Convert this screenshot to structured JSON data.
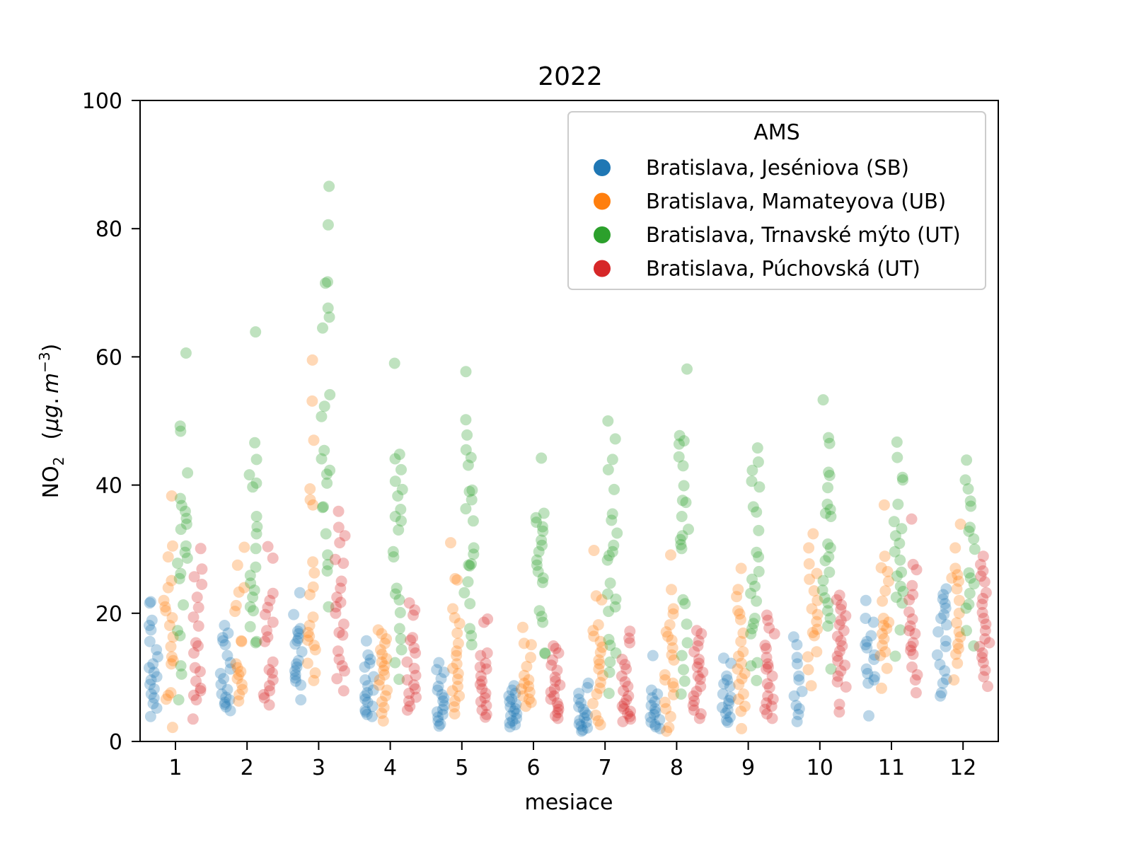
{
  "chart_data": {
    "type": "scatter",
    "title": "2022",
    "xlabel": "mesiace",
    "ylabel_main": "NO",
    "ylabel_sub": "2",
    "ylabel_unit_open": "(",
    "ylabel_unit_mu": "μ",
    "ylabel_unit_g": "g",
    "ylabel_unit_dot": ".",
    "ylabel_unit_m": "m",
    "ylabel_unit_exp": "−3",
    "ylabel_unit_close": ")",
    "ylim": [
      0,
      100
    ],
    "yticks": [
      "0",
      "20",
      "40",
      "60",
      "80",
      "100"
    ],
    "categories": [
      "1",
      "2",
      "3",
      "4",
      "5",
      "6",
      "7",
      "8",
      "9",
      "10",
      "11",
      "12"
    ],
    "legend_title": "AMS",
    "legend_position": "top-right",
    "grid": false,
    "series": [
      {
        "name": "Bratislava, Jeséniova (SB)",
        "color": "#1f77b4",
        "values": [
          [
            21.8,
            21.6,
            18.9,
            18.1,
            17.4,
            15.6,
            14.3,
            13.2,
            12.1,
            11.5,
            10.8,
            10.1,
            9.6,
            8.9,
            8.2,
            7.4,
            6.8,
            5.9,
            5.2,
            3.9
          ],
          [
            18.1,
            16.9,
            16.2,
            15.7,
            15.1,
            13.4,
            12.3,
            11.3,
            10.6,
            9.8,
            8.9,
            8.1,
            7.4,
            6.9,
            6.5,
            6.1,
            5.8,
            5.4,
            4.8
          ],
          [
            23.2,
            19.8,
            17.6,
            17.2,
            16.8,
            16.1,
            15.7,
            15.2,
            14.0,
            12.6,
            12.1,
            11.6,
            11.0,
            10.4,
            9.9,
            9.4,
            8.8,
            6.5
          ],
          [
            15.7,
            13.5,
            12.8,
            12.2,
            11.6,
            10.1,
            9.6,
            8.7,
            8.0,
            7.6,
            7.1,
            6.6,
            6.1,
            5.5,
            4.9,
            4.6,
            4.2,
            3.9
          ],
          [
            12.3,
            11.2,
            10.8,
            9.8,
            8.6,
            8.0,
            7.3,
            6.8,
            6.3,
            5.6,
            5.0,
            4.6,
            4.2,
            3.8,
            3.2,
            2.7,
            2.4
          ],
          [
            8.7,
            8.0,
            7.5,
            7.1,
            6.6,
            6.2,
            5.8,
            5.4,
            5.1,
            4.7,
            4.3,
            4.0,
            3.6,
            3.2,
            2.9,
            2.6,
            2.3
          ],
          [
            9.1,
            8.4,
            7.5,
            6.6,
            6.0,
            5.4,
            5.0,
            4.5,
            4.1,
            3.7,
            3.3,
            3.0,
            2.7,
            2.4,
            2.1,
            1.8,
            1.6
          ],
          [
            13.4,
            8.0,
            7.4,
            6.8,
            6.2,
            5.6,
            5.1,
            4.6,
            4.2,
            3.8,
            3.4,
            3.0,
            2.6,
            2.3,
            2.0
          ],
          [
            13.0,
            12.2,
            10.2,
            9.6,
            9.0,
            8.6,
            7.4,
            6.9,
            6.4,
            5.9,
            5.3,
            4.9,
            4.4,
            3.8,
            3.3,
            3.0
          ],
          [
            16.3,
            15.1,
            13.1,
            12.1,
            10.2,
            9.6,
            7.8,
            7.1,
            5.6,
            5.1,
            4.2,
            3.1
          ],
          [
            22.0,
            19.2,
            18.6,
            16.5,
            15.6,
            15.1,
            14.6,
            13.5,
            12.8,
            11.3,
            10.6,
            10.1,
            9.6,
            9.1,
            4.0
          ],
          [
            23.8,
            22.9,
            22.2,
            21.5,
            20.8,
            19.8,
            19.2,
            18.2,
            17.1,
            15.7,
            14.8,
            13.5,
            12.0,
            11.0,
            9.7,
            9.1,
            7.6,
            7.1
          ]
        ]
      },
      {
        "name": "Bratislava, Mamateyova (UB)",
        "color": "#ff7f0e",
        "values": [
          [
            38.3,
            30.5,
            28.8,
            25.1,
            24.0,
            22.0,
            21.0,
            20.4,
            19.3,
            18.1,
            16.3,
            14.8,
            13.2,
            12.6,
            12.1,
            7.6,
            7.2,
            6.6,
            2.2
          ],
          [
            30.3,
            27.5,
            24.0,
            23.3,
            21.2,
            20.3,
            15.7,
            15.6,
            12.1,
            11.5,
            10.9,
            10.4,
            9.8,
            8.9,
            8.1,
            7.3,
            6.3
          ],
          [
            59.5,
            53.1,
            47.0,
            39.4,
            37.7,
            36.9,
            28.0,
            26.3,
            24.1,
            22.9,
            19.4,
            18.1,
            17.0,
            16.4,
            15.8,
            15.0,
            14.3,
            12.2,
            10.7,
            9.5
          ],
          [
            17.4,
            16.8,
            16.0,
            15.3,
            14.3,
            13.6,
            12.9,
            12.4,
            11.8,
            11.1,
            10.4,
            9.6,
            8.8,
            8.0,
            7.1,
            6.2,
            5.3,
            4.4,
            3.2
          ],
          [
            31.0,
            25.4,
            25.2,
            20.7,
            19.3,
            18.4,
            16.9,
            15.3,
            14.1,
            13.4,
            12.1,
            11.4,
            10.6,
            9.7,
            8.6,
            7.9,
            7.1,
            6.3,
            5.4,
            4.3
          ],
          [
            17.8,
            15.3,
            15.1,
            13.1,
            11.7,
            10.3,
            9.6,
            9.1,
            8.6,
            8.2,
            7.7,
            7.1,
            6.6,
            6.1,
            5.5
          ],
          [
            29.8,
            22.7,
            22.1,
            18.2,
            17.3,
            16.4,
            15.6,
            14.7,
            13.9,
            12.7,
            12.1,
            11.3,
            10.3,
            9.2,
            8.3,
            7.4,
            5.9,
            4.1,
            3.2,
            2.6
          ],
          [
            29.1,
            23.7,
            20.7,
            19.9,
            18.2,
            17.1,
            16.4,
            15.8,
            14.6,
            13.5,
            12.7,
            10.4,
            9.6,
            9.1,
            8.5,
            7.3,
            6.1,
            5.1,
            3.9,
            2.2,
            1.6
          ],
          [
            27.0,
            23.7,
            22.6,
            20.4,
            19.9,
            19.0,
            16.9,
            15.6,
            14.0,
            13.3,
            12.2,
            11.3,
            10.6,
            9.8,
            8.9,
            7.4,
            6.6,
            5.5,
            4.7,
            2.0
          ],
          [
            32.4,
            30.2,
            27.7,
            26.2,
            25.3,
            23.5,
            22.0,
            20.7,
            19.8,
            18.7,
            17.5,
            17.0,
            16.5,
            14.0,
            13.2,
            11.2,
            8.7
          ],
          [
            36.9,
            28.9,
            27.1,
            26.5,
            25.0,
            23.5,
            21.9,
            19.2,
            18.6,
            18.1,
            17.6,
            16.8,
            16.0,
            15.0,
            14.0,
            13.4,
            11.4,
            8.3
          ],
          [
            33.9,
            30.2,
            27.0,
            26.0,
            25.5,
            25.0,
            23.8,
            22.0,
            20.0,
            18.5,
            17.1,
            16.3,
            15.2,
            14.5,
            13.6,
            12.2,
            9.6
          ]
        ]
      },
      {
        "name": "Bratislava, Trnavské mýto (UT)",
        "color": "#2ca02c",
        "values": [
          [
            60.6,
            49.2,
            48.4,
            41.9,
            37.9,
            36.8,
            35.9,
            34.8,
            33.9,
            33.1,
            30.5,
            29.5,
            28.6,
            27.8,
            26.2,
            25.4,
            21.3,
            17.3,
            16.5,
            11.8,
            10.5,
            6.5
          ],
          [
            63.9,
            46.6,
            44.0,
            41.6,
            40.3,
            39.7,
            35.1,
            33.5,
            32.4,
            30.1,
            27.2,
            25.9,
            24.7,
            23.6,
            22.5,
            21.0,
            20.4,
            17.9,
            15.6,
            15.4
          ],
          [
            86.6,
            80.6,
            71.7,
            71.5,
            67.6,
            66.2,
            64.5,
            54.1,
            52.3,
            50.7,
            45.4,
            44.1,
            42.3,
            41.7,
            40.3,
            36.6,
            36.5,
            32.4,
            29.1,
            27.6,
            26.6,
            21.0
          ],
          [
            59.0,
            44.8,
            44.1,
            42.4,
            40.6,
            39.3,
            38.3,
            36.2,
            35.1,
            34.4,
            33.0,
            29.6,
            28.8,
            23.9,
            23.0,
            22.1,
            20.1,
            17.6,
            16.0,
            14.3,
            12.3,
            9.7
          ],
          [
            57.7,
            50.2,
            47.8,
            45.5,
            44.3,
            43.1,
            39.2,
            39.0,
            37.7,
            36.3,
            34.4,
            30.2,
            29.2,
            27.5,
            27.7,
            27.4,
            24.9,
            23.2,
            21.5,
            17.6,
            16.5,
            15.1
          ],
          [
            44.2,
            35.6,
            34.9,
            34.2,
            33.5,
            32.8,
            31.4,
            30.6,
            29.6,
            28.3,
            27.5,
            26.5,
            25.5,
            24.8,
            20.4,
            19.5,
            18.6,
            13.8,
            13.7
          ],
          [
            50.0,
            47.2,
            44.0,
            42.4,
            39.3,
            35.5,
            34.5,
            32.5,
            30.6,
            29.6,
            29.0,
            28.3,
            24.7,
            23.0,
            22.2,
            21.0,
            20.3,
            15.9,
            15.0,
            13.8,
            12.4,
            10.8,
            7.5
          ],
          [
            58.1,
            47.7,
            46.9,
            46.4,
            44.4,
            43.0,
            39.9,
            37.6,
            37.3,
            35.1,
            33.1,
            32.1,
            31.5,
            30.7,
            30.1,
            22.1,
            21.5,
            18.3,
            15.4,
            13.4,
            11.2,
            9.4,
            7.4
          ],
          [
            45.8,
            43.6,
            42.3,
            40.6,
            39.7,
            36.6,
            35.8,
            32.9,
            29.5,
            28.8,
            26.5,
            25.3,
            24.2,
            23.1,
            21.9,
            19.2,
            18.4,
            17.6,
            16.8,
            12.3,
            11.8,
            9.5
          ],
          [
            53.3,
            47.4,
            46.5,
            42.0,
            41.5,
            39.6,
            37.0,
            36.2,
            35.6,
            35.1,
            30.8,
            30.2,
            28.8,
            28.2,
            26.4,
            25.1,
            23.6,
            22.4,
            21.6,
            20.4,
            19.2,
            18.0,
            11.3
          ],
          [
            46.7,
            44.3,
            41.2,
            40.8,
            37.0,
            34.3,
            33.2,
            32.1,
            30.9,
            29.6,
            28.3,
            26.4,
            25.8,
            24.2,
            23.4,
            22.5,
            21.6,
            17.4,
            13.3
          ],
          [
            43.9,
            40.8,
            39.4,
            37.5,
            36.7,
            33.4,
            32.8,
            31.6,
            30.0,
            26.3,
            25.5,
            24.6,
            23.1,
            21.4,
            20.8,
            17.3,
            14.9
          ]
        ]
      },
      {
        "name": "Bratislava, Púchovská (UT)",
        "color": "#d62728",
        "values": [
          [
            30.1,
            26.9,
            25.7,
            24.5,
            22.5,
            20.9,
            19.4,
            18.0,
            15.4,
            14.9,
            13.8,
            11.5,
            10.9,
            9.4,
            8.3,
            7.9,
            7.2,
            6.5,
            3.5
          ],
          [
            30.4,
            28.6,
            23.1,
            22.0,
            20.9,
            19.8,
            18.6,
            17.3,
            16.3,
            15.6,
            12.4,
            11.2,
            10.7,
            9.6,
            8.7,
            7.9,
            7.3,
            6.8,
            5.7
          ],
          [
            35.9,
            33.4,
            32.1,
            31.0,
            28.4,
            27.8,
            25.0,
            23.9,
            22.5,
            21.7,
            21.0,
            20.0,
            18.3,
            17.0,
            16.6,
            14.1,
            12.8,
            11.8,
            11.0,
            9.8,
            7.9
          ],
          [
            21.6,
            20.5,
            19.7,
            16.2,
            15.8,
            14.6,
            13.8,
            12.4,
            11.4,
            10.3,
            9.6,
            8.8,
            8.2,
            7.5,
            6.9,
            6.3,
            5.5,
            4.9
          ],
          [
            19.1,
            18.6,
            13.8,
            13.4,
            12.2,
            11.6,
            11.3,
            10.2,
            9.4,
            8.9,
            8.2,
            7.5,
            6.8,
            6.2,
            5.6,
            4.9,
            4.2,
            3.8
          ],
          [
            14.9,
            14.5,
            13.8,
            12.7,
            11.9,
            11.1,
            10.0,
            9.4,
            8.8,
            8.2,
            7.7,
            7.1,
            6.6,
            6.0,
            5.5,
            5.0,
            4.5,
            4.0,
            3.6
          ],
          [
            17.2,
            16.1,
            15.4,
            12.8,
            12.0,
            11.3,
            10.2,
            9.3,
            8.6,
            7.9,
            7.1,
            6.5,
            5.9,
            5.5,
            5.1,
            4.7,
            4.3,
            3.9,
            3.5,
            3.1
          ],
          [
            17.3,
            16.8,
            15.7,
            14.9,
            14.0,
            12.8,
            12.2,
            11.6,
            10.8,
            10.2,
            9.7,
            8.6,
            7.8,
            7.1,
            6.3,
            5.6,
            4.9,
            4.3,
            3.6
          ],
          [
            19.7,
            18.9,
            17.7,
            16.8,
            15.0,
            14.5,
            13.1,
            12.1,
            11.6,
            11.3,
            10.2,
            9.0,
            8.4,
            7.1,
            6.6,
            6.0,
            5.5,
            5.0,
            4.3,
            3.6
          ],
          [
            22.8,
            22.1,
            21.3,
            20.6,
            19.6,
            18.9,
            18.2,
            17.3,
            16.4,
            15.7,
            14.9,
            14.1,
            13.3,
            12.6,
            11.9,
            11.0,
            10.2,
            9.3,
            8.5,
            5.8,
            4.6
          ],
          [
            34.7,
            27.6,
            26.8,
            24.3,
            22.9,
            22.1,
            20.2,
            19.1,
            18.0,
            17.3,
            16.8,
            15.4,
            14.8,
            14.2,
            13.6,
            11.6,
            10.4,
            9.6,
            7.6
          ],
          [
            28.9,
            27.6,
            26.6,
            25.8,
            24.9,
            23.2,
            22.3,
            21.4,
            20.1,
            19.2,
            18.3,
            17.3,
            16.0,
            15.4,
            14.8,
            13.8,
            13.1,
            12.3,
            11.1,
            10.1,
            8.6
          ]
        ]
      }
    ]
  }
}
